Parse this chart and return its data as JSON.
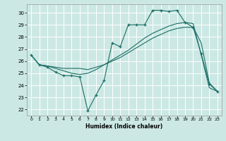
{
  "xlabel": "Humidex (Indice chaleur)",
  "bg_color": "#cce8e4",
  "line_color": "#1a6e65",
  "grid_color": "#ffffff",
  "xlim": [
    -0.5,
    23.5
  ],
  "ylim": [
    21.5,
    30.7
  ],
  "xticks": [
    0,
    1,
    2,
    3,
    4,
    5,
    6,
    7,
    8,
    9,
    10,
    11,
    12,
    13,
    14,
    15,
    16,
    17,
    18,
    19,
    20,
    21,
    22,
    23
  ],
  "yticks": [
    22,
    23,
    24,
    25,
    26,
    27,
    28,
    29,
    30
  ],
  "line1_x": [
    0,
    1,
    2,
    3,
    4,
    5,
    6,
    7,
    8,
    9,
    10,
    11,
    12,
    13,
    14,
    15,
    16,
    17,
    18,
    19,
    20,
    21,
    22,
    23
  ],
  "line1_y": [
    26.5,
    25.7,
    25.5,
    25.1,
    24.8,
    24.8,
    24.7,
    21.9,
    23.2,
    24.4,
    27.5,
    27.2,
    29.0,
    29.0,
    29.0,
    30.2,
    30.2,
    30.1,
    30.2,
    29.2,
    28.8,
    26.6,
    24.1,
    23.5
  ],
  "line2_x": [
    0,
    1,
    2,
    3,
    4,
    5,
    6,
    7,
    8,
    9,
    10,
    11,
    12,
    13,
    14,
    15,
    16,
    17,
    18,
    19,
    20,
    21,
    22,
    23
  ],
  "line2_y": [
    26.5,
    25.7,
    25.6,
    25.5,
    25.4,
    25.4,
    25.4,
    25.3,
    25.5,
    25.7,
    26.0,
    26.3,
    26.7,
    27.1,
    27.5,
    27.9,
    28.2,
    28.5,
    28.7,
    28.8,
    28.8,
    27.5,
    24.2,
    23.5
  ],
  "line3_x": [
    0,
    1,
    2,
    3,
    4,
    5,
    6,
    7,
    8,
    9,
    10,
    11,
    12,
    13,
    14,
    15,
    16,
    17,
    18,
    19,
    20,
    21,
    22,
    23
  ],
  "line3_y": [
    26.5,
    25.7,
    25.6,
    25.4,
    25.2,
    25.0,
    24.9,
    25.0,
    25.3,
    25.7,
    26.1,
    26.5,
    26.9,
    27.4,
    27.9,
    28.3,
    28.6,
    28.9,
    29.1,
    29.2,
    29.1,
    26.5,
    23.8,
    23.5
  ]
}
